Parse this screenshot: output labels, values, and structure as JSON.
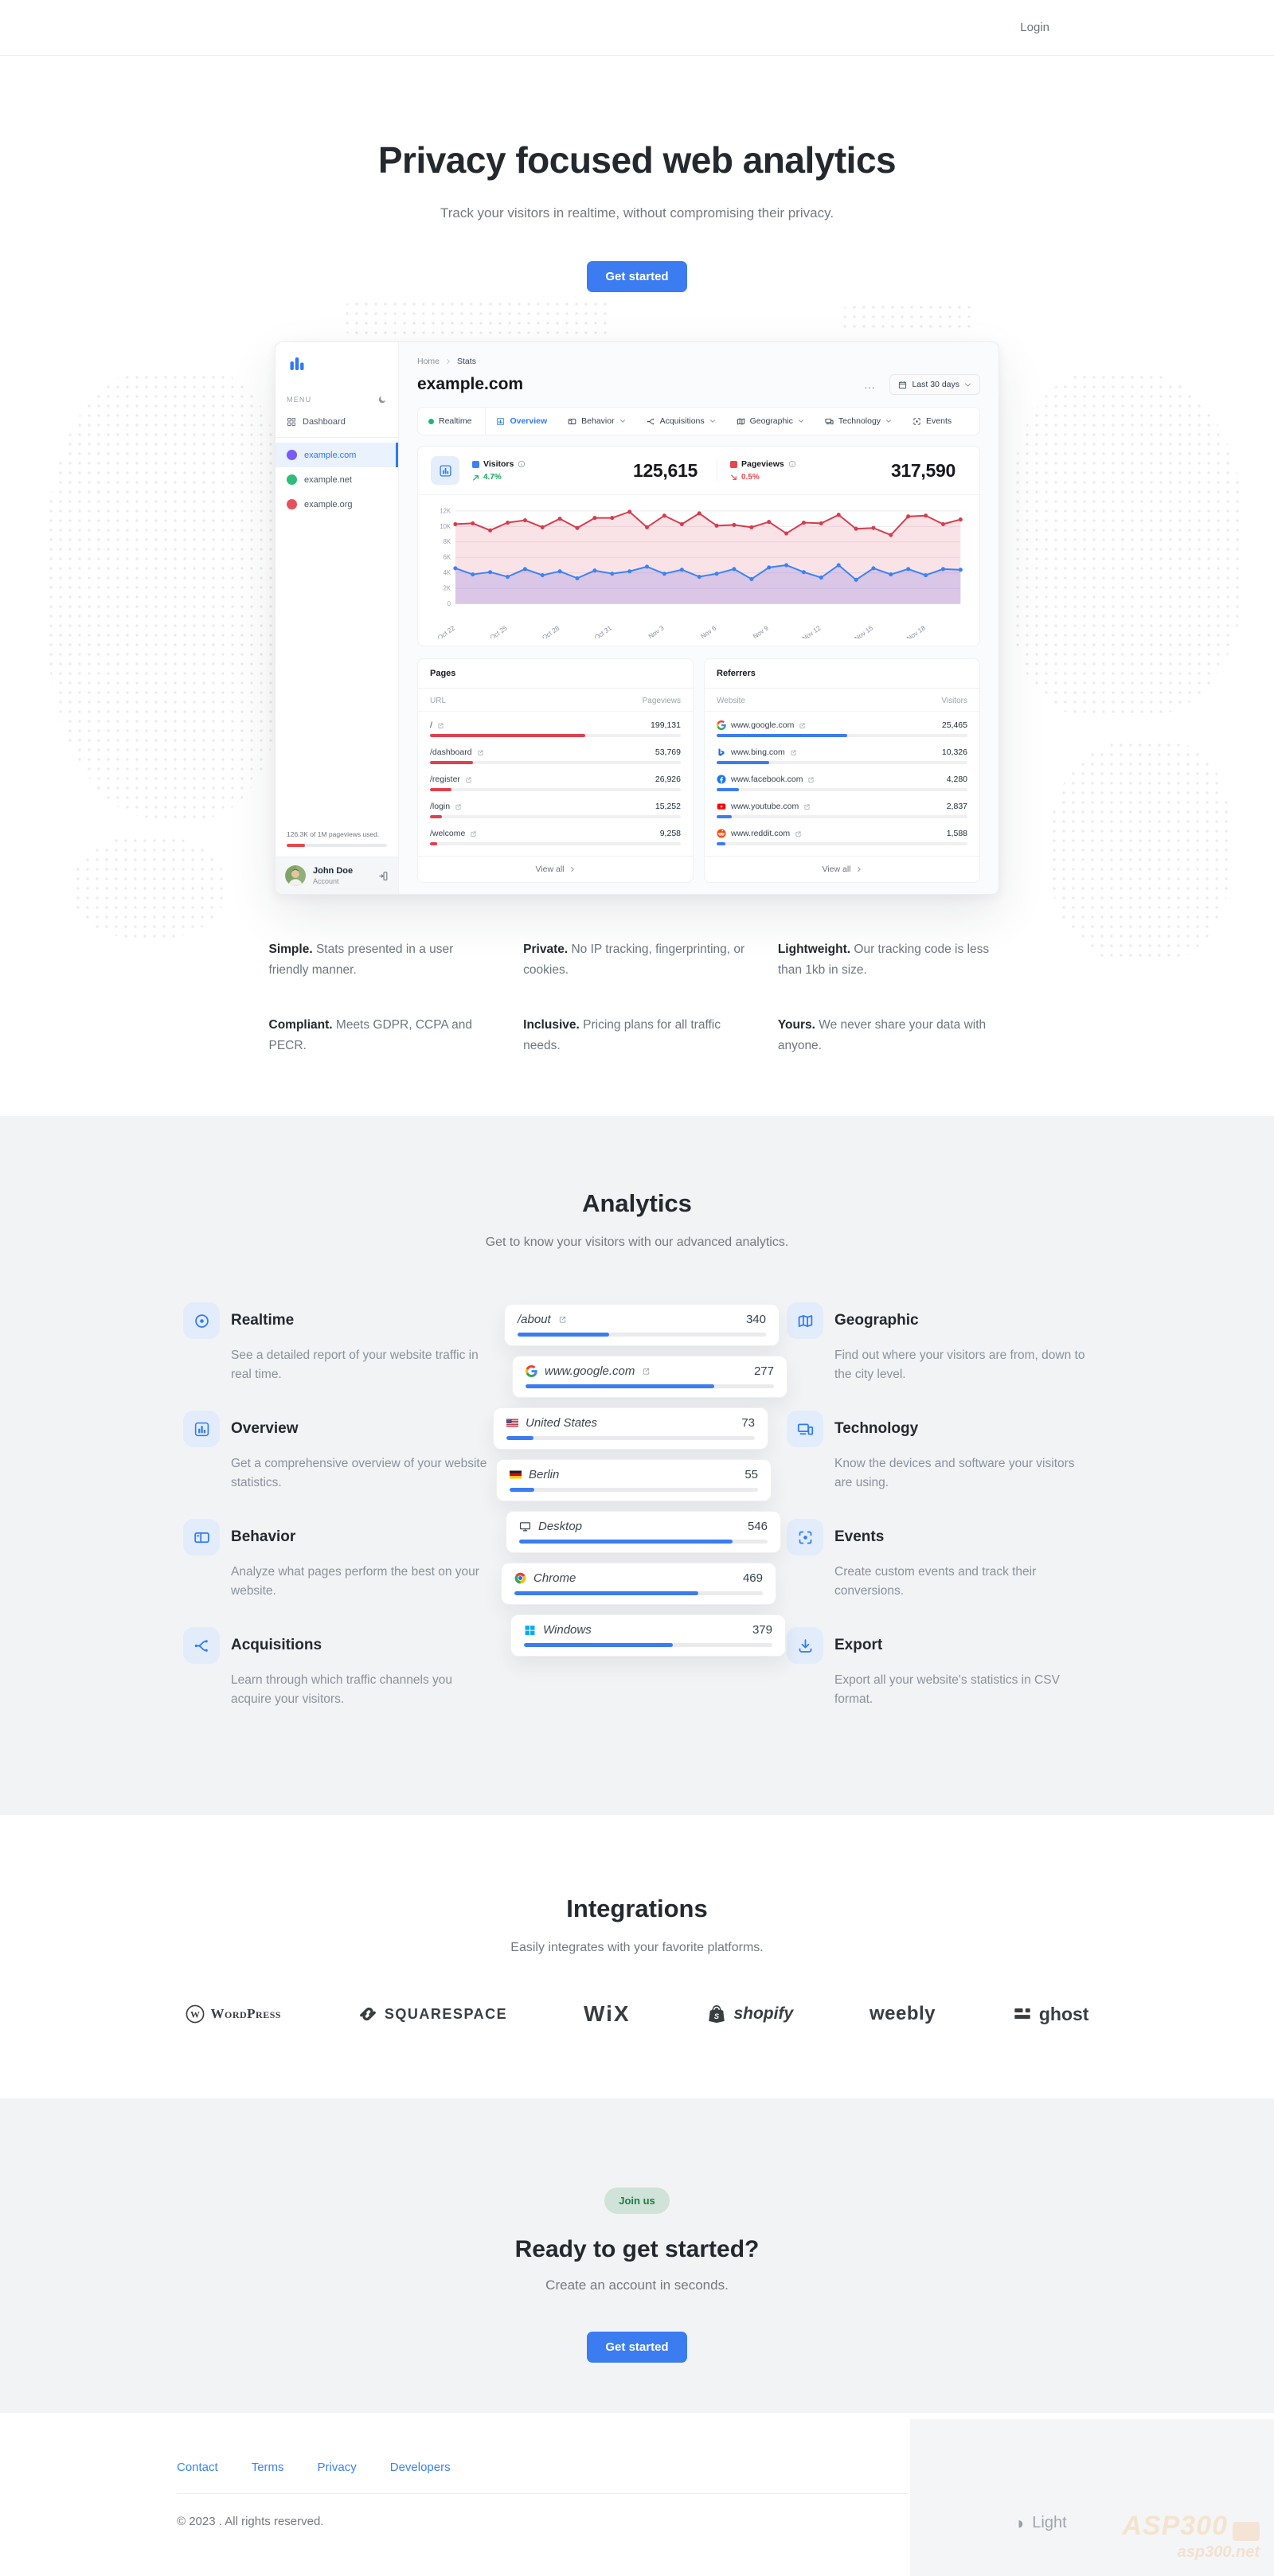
{
  "nav": {
    "login_label": "Login"
  },
  "hero": {
    "title": "Privacy focused web analytics",
    "subtitle": "Track your visitors in realtime, without compromising their privacy.",
    "cta_label": "Get started"
  },
  "dashboard": {
    "sidebar": {
      "menu_label": "MENU",
      "dashboard_item": "Dashboard",
      "sites": [
        {
          "label": "example.com",
          "active": true,
          "dot_color": "#7a5af8"
        },
        {
          "label": "example.net",
          "active": false,
          "dot_color": "#2dbd78"
        },
        {
          "label": "example.org",
          "active": false,
          "dot_color": "#e8505b"
        }
      ],
      "usage_text": "126.3K of 1M pageviews used.",
      "usage_pct": 18,
      "user_name": "John Doe",
      "user_role": "Account"
    },
    "breadcrumb": {
      "home": "Home",
      "current": "Stats"
    },
    "site_title": "example.com",
    "more_label": "...",
    "date_range_label": "Last 30 days",
    "tabs": [
      {
        "label": "Realtime",
        "icon": "live-dot"
      },
      {
        "label": "Overview",
        "icon": "overview",
        "active": true
      },
      {
        "label": "Behavior",
        "icon": "behavior",
        "chevron": true
      },
      {
        "label": "Acquisitions",
        "icon": "acquisitions",
        "chevron": true
      },
      {
        "label": "Geographic",
        "icon": "geographic",
        "chevron": true
      },
      {
        "label": "Technology",
        "icon": "technology",
        "chevron": true
      },
      {
        "label": "Events",
        "icon": "events"
      }
    ],
    "stats": [
      {
        "label": "Visitors",
        "value": "125,615",
        "delta": "4.7%",
        "direction": "up",
        "swatch": "#3b82f6"
      },
      {
        "label": "Pageviews",
        "value": "317,590",
        "delta": "0.5%",
        "direction": "down",
        "swatch": "#e5484d"
      }
    ],
    "chart_data": {
      "type": "line",
      "title": "Visitors and pageviews over last 30 days",
      "x_tick_labels": [
        "Oct 22",
        "Oct 25",
        "Oct 28",
        "Oct 31",
        "Nov 3",
        "Nov 6",
        "Nov 9",
        "Nov 12",
        "Nov 15",
        "Nov 18"
      ],
      "label_every": 3,
      "ylim": [
        0,
        12000
      ],
      "y_ticks": [
        "0",
        "2K",
        "4K",
        "6K",
        "8K",
        "10K",
        "12K"
      ],
      "grid": true,
      "legend_position": "none",
      "series": [
        {
          "name": "Pageviews",
          "color": "#d63c4e",
          "fill": "rgba(222,70,90,0.15)",
          "values": [
            10300,
            10400,
            9500,
            10500,
            10800,
            9900,
            11000,
            9800,
            11100,
            11100,
            11900,
            9900,
            11400,
            10300,
            11700,
            10100,
            10200,
            9900,
            10600,
            9100,
            10500,
            10400,
            11500,
            9700,
            9800,
            8900,
            11300,
            11400,
            10300,
            10900
          ]
        },
        {
          "name": "Visitors",
          "color": "#3b82f6",
          "fill": "rgba(105,99,241,0.22)",
          "values": [
            4600,
            3800,
            4100,
            3500,
            4500,
            3700,
            4200,
            3300,
            4300,
            3900,
            4200,
            4800,
            3900,
            4400,
            3500,
            3900,
            4500,
            3200,
            4700,
            5000,
            4100,
            3400,
            5000,
            3100,
            4600,
            3800,
            4500,
            3700,
            4500,
            4400
          ]
        }
      ]
    },
    "pages_card": {
      "title": "Pages",
      "columns": [
        "URL",
        "Pageviews"
      ],
      "view_all": "View all",
      "bar_color": "#e0404f",
      "rows": [
        {
          "label": "/",
          "value": "199,131",
          "pct": 62
        },
        {
          "label": "/dashboard",
          "value": "53,769",
          "pct": 17
        },
        {
          "label": "/register",
          "value": "26,926",
          "pct": 8.5
        },
        {
          "label": "/login",
          "value": "15,252",
          "pct": 4.8
        },
        {
          "label": "/welcome",
          "value": "9,258",
          "pct": 3
        }
      ]
    },
    "referrers_card": {
      "title": "Referrers",
      "columns": [
        "Website",
        "Visitors"
      ],
      "view_all": "View all",
      "bar_color": "#3b7df0",
      "rows": [
        {
          "label": "www.google.com",
          "value": "25,465",
          "pct": 52,
          "icon": "google"
        },
        {
          "label": "www.bing.com",
          "value": "10,326",
          "pct": 21,
          "icon": "bing"
        },
        {
          "label": "www.facebook.com",
          "value": "4,280",
          "pct": 9,
          "icon": "facebook"
        },
        {
          "label": "www.youtube.com",
          "value": "2,837",
          "pct": 6,
          "icon": "youtube"
        },
        {
          "label": "www.reddit.com",
          "value": "1,588",
          "pct": 3.5,
          "icon": "reddit"
        }
      ]
    }
  },
  "benefits": [
    {
      "lead": "Simple.",
      "text": "Stats presented in a user friendly manner."
    },
    {
      "lead": "Private.",
      "text": "No IP tracking, fingerprinting, or cookies."
    },
    {
      "lead": "Lightweight.",
      "text": "Our tracking code is less than 1kb in size."
    },
    {
      "lead": "Compliant.",
      "text": "Meets GDPR, CCPA and PECR."
    },
    {
      "lead": "Inclusive.",
      "text": "Pricing plans for all traffic needs."
    },
    {
      "lead": "Yours.",
      "text": "We never share your data with anyone."
    }
  ],
  "analytics": {
    "title": "Analytics",
    "subtitle": "Get to know your visitors with our advanced analytics.",
    "features_left": [
      {
        "icon": "realtime",
        "title": "Realtime",
        "text": "See a detailed report of your website traffic in real time."
      },
      {
        "icon": "overview",
        "title": "Overview",
        "text": "Get a comprehensive overview of your website statistics."
      },
      {
        "icon": "behavior",
        "title": "Behavior",
        "text": "Analyze what pages perform the best on your website."
      },
      {
        "icon": "acquisitions",
        "title": "Acquisitions",
        "text": "Learn through which traffic channels you acquire your visitors."
      }
    ],
    "features_right": [
      {
        "icon": "geographic",
        "title": "Geographic",
        "text": "Find out where your visitors are from, down to the city level."
      },
      {
        "icon": "technology",
        "title": "Technology",
        "text": "Know the devices and software your visitors are using."
      },
      {
        "icon": "events",
        "title": "Events",
        "text": "Create custom events and track their conversions."
      },
      {
        "icon": "export",
        "title": "Export",
        "text": "Export all your website's statistics in CSV format."
      }
    ],
    "cards": [
      {
        "icon": null,
        "label": "/about",
        "value": "340",
        "pct": 37,
        "external": true
      },
      {
        "icon": "google",
        "label": "www.google.com",
        "value": "277",
        "pct": 76,
        "external": true
      },
      {
        "icon": "flag-us",
        "label": "United States",
        "value": "73",
        "pct": 11
      },
      {
        "icon": "flag-de",
        "label": "Berlin",
        "value": "55",
        "pct": 10
      },
      {
        "icon": "desktop",
        "label": "Desktop",
        "value": "546",
        "pct": 86
      },
      {
        "icon": "chrome",
        "label": "Chrome",
        "value": "469",
        "pct": 74
      },
      {
        "icon": "windows",
        "label": "Windows",
        "value": "379",
        "pct": 60
      }
    ]
  },
  "integrations": {
    "title": "Integrations",
    "subtitle": "Easily integrates with your favorite platforms.",
    "platforms": [
      {
        "id": "wordpress",
        "display": "WordPress"
      },
      {
        "id": "squarespace",
        "display": "SQUARESPACE"
      },
      {
        "id": "wix",
        "display": "WiX"
      },
      {
        "id": "shopify",
        "display": "shopify"
      },
      {
        "id": "weebly",
        "display": "weebly"
      },
      {
        "id": "ghost",
        "display": "ghost"
      }
    ]
  },
  "cta": {
    "badge": "Join us",
    "title": "Ready to get started?",
    "subtitle": "Create an account in seconds.",
    "button": "Get started"
  },
  "footer": {
    "links": [
      "Contact",
      "Terms",
      "Privacy",
      "Developers"
    ],
    "copyright": "© 2023 . All rights reserved.",
    "theme_toggle": "Light"
  },
  "watermark": {
    "title": "ASP300",
    "subtitle": "asp300.net"
  }
}
